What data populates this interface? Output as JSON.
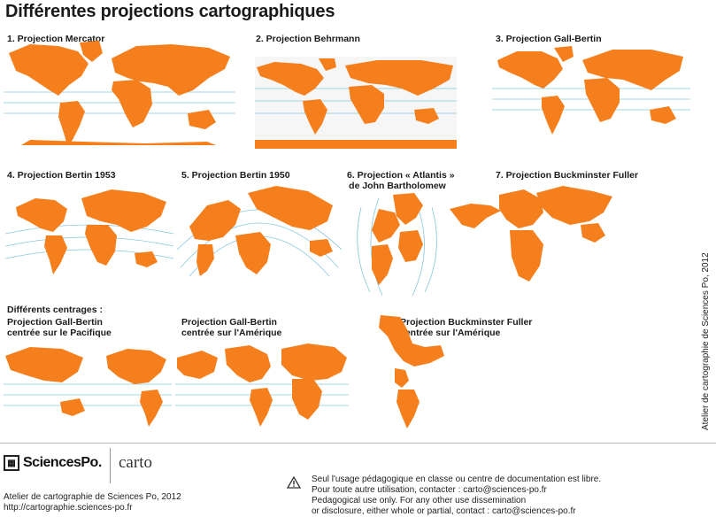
{
  "title": "Différentes projections cartographiques",
  "projections": [
    {
      "label": "1. Projection Mercator"
    },
    {
      "label": "2. Projection Behrmann"
    },
    {
      "label": "3. Projection Gall-Bertin"
    },
    {
      "label": "4. Projection Bertin 1953"
    },
    {
      "label": "5. Projection Bertin 1950"
    },
    {
      "label_line1": "6. Projection « Atlantis »",
      "label_line2": "de John Bartholomew"
    },
    {
      "label": "7. Projection Buckminster Fuller"
    }
  ],
  "centrages": {
    "heading": "Différents centrages :",
    "items": [
      {
        "line1": "Projection Gall-Bertin",
        "line2": "centrée sur le Pacifique"
      },
      {
        "line1": "Projection Gall-Bertin",
        "line2": "centrée sur l'Amérique"
      },
      {
        "line1": "Projection Buckminster Fuller",
        "line2": "centrée sur l'Amérique"
      }
    ]
  },
  "colors": {
    "land": "#f47f1c",
    "graticule": "#86c6dc",
    "background": "#ffffff"
  },
  "side_credit": "Atelier de cartographie de Sciences Po, 2012",
  "footer": {
    "logo_text": "SciencesPo.",
    "carto_text": "carto",
    "credit_line1": "Atelier de cartographie de Sciences Po, 2012",
    "credit_line2": "http://cartographie.sciences-po.fr",
    "warning_icon": "warning-triangle-icon",
    "notice_line1": "Seul l'usage pédagogique en classe ou centre de documentation est libre.",
    "notice_line2": "Pour toute autre utilisation, contacter : carto@sciences-po.fr",
    "notice_line3": "Pedagogical use only. For any other use dissemination",
    "notice_line4": "or disclosure, either whole or partial, contact : carto@sciences-po.fr"
  }
}
